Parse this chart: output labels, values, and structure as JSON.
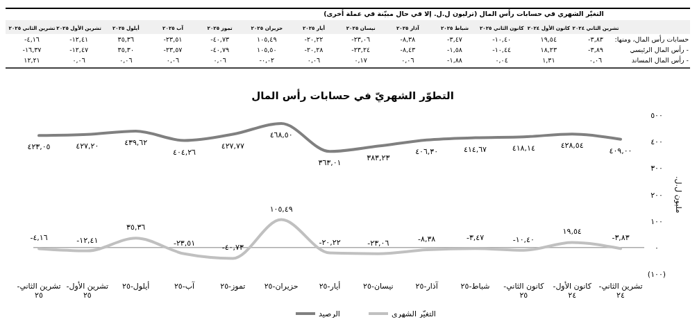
{
  "chart_data": [
    {
      "type": "other",
      "title": "التغيّر الشهري في حسابات رأس المال (ترليون ل.ل. إلا في حال مبيّنة في عملة أخرى)",
      "categories": [
        "تشرين الثاني ٢٠٢٥",
        "تشرين الأول ٢٠٢٥",
        "أيلول ٢٠٢٥",
        "آب ٢٠٢٥",
        "تموز ٢٠٢٥",
        "حزيران ٢٠٢٥",
        "أيار ٢٠٢٥",
        "نيسان ٢٠٢٥",
        "آذار ٢٠٢٥",
        "شباط ٢٠٢٥",
        "كانون الثاني ٢٠٢٥",
        "كانون الأول ٢٠٢٤",
        "تشرين الثاني ٢٠٢٤"
      ],
      "series": [
        {
          "name": "حسابات رأس المال، ومنها:",
          "values": [
            -4.16,
            -12.41,
            35.36,
            -23.51,
            -40.73,
            105.49,
            -20.22,
            -23.06,
            -8.38,
            -3.47,
            -10.4,
            19.54,
            -3.83
          ],
          "value_labels": [
            "-٤,١٦",
            "-١٢,٤١",
            "٣٥,٣٦",
            "-٢٣,٥١",
            "-٤٠,٧٣",
            "١٠٥,٤٩",
            "-٢٠,٢٢",
            "-٢٣,٠٦",
            "-٨,٣٨",
            "-٣,٤٧",
            "-١٠,٤٠",
            "١٩,٥٤",
            "-٣,٨٣"
          ]
        },
        {
          "name": "- رأس المال الرئيسي",
          "values": [
            -16.37,
            -12.47,
            35.3,
            -23.57,
            -40.79,
            105.5,
            -20.28,
            -23.24,
            -8.43,
            -1.58,
            -10.44,
            18.23,
            -3.89
          ],
          "value_labels": [
            "-١٦,٣٧",
            "-١٢,٤٧",
            "٣٥,٣٠",
            "-٢٣,٥٧",
            "-٤٠,٧٩",
            "١٠٥,٥٠",
            "-٢٠,٢٨",
            "-٢٣,٢٤",
            "-٨,٤٣",
            "-١,٥٨",
            "-١٠,٤٤",
            "١٨,٢٣",
            "-٣,٨٩"
          ]
        },
        {
          "name": "- رأس المال المساند",
          "values": [
            12.21,
            0.06,
            0.06,
            0.06,
            0.06,
            -0.02,
            0.06,
            0.17,
            0.06,
            -1.88,
            0.04,
            1.31,
            0.06
          ],
          "value_labels": [
            "١٢,٢١",
            "٠,٠٦",
            "٠,٠٦",
            "٠,٠٦",
            "٠,٠٦",
            "-٠,٠٢",
            "٠,٠٦",
            "٠,١٧",
            "٠,٠٦",
            "-١,٨٨",
            "٠,٠٤",
            "١,٣١",
            "٠,٠٦"
          ]
        }
      ]
    },
    {
      "type": "line",
      "title": "التطوّر الشهريّ في حسابات رأس المال",
      "ylabel": "مليون ل.ل.",
      "categories": [
        "تشرين الثاني-٢٥",
        "تشرين الأول-٢٥",
        "أيلول-٢٥",
        "آب-٢٥",
        "تموز-٢٥",
        "حزيران-٢٥",
        "أيار-٢٥",
        "نيسان-٢٥",
        "آذار-٢٥",
        "شباط-٢٥",
        "كانون الثاني-٢٥",
        "كانون الأول-٢٤",
        "تشرين الثاني-٢٤"
      ],
      "series": [
        {
          "name": "الرصيد",
          "color": "#808080",
          "values": [
            423.05,
            427.2,
            439.62,
            404.26,
            427.77,
            468.5,
            363.01,
            383.23,
            406.3,
            414.67,
            418.14,
            428.54,
            409.0
          ],
          "value_labels": [
            "٤٢٣,٠٥",
            "٤٢٧,٢٠",
            "٤٣٩,٦٢",
            "٤٠٤,٢٦",
            "٤٢٧,٧٧",
            "٤٦٨,٥٠",
            "٣٦٣,٠١",
            "٣٨٣,٢٣",
            "٤٠٦,٣٠",
            "٤١٤,٦٧",
            "٤١٨,١٤",
            "٤٢٨,٥٤",
            "٤٠٩,٠٠"
          ]
        },
        {
          "name": "التغيّر الشهري",
          "color": "#c0c0c0",
          "values": [
            -4.16,
            -12.41,
            35.36,
            -23.51,
            -40.73,
            105.49,
            -20.22,
            -23.06,
            -8.38,
            -3.47,
            -10.4,
            19.54,
            -3.83
          ],
          "value_labels": [
            "-٤,١٦",
            "-١٢,٤١",
            "٣٥,٣٦",
            "-٢٣,٥١",
            "-٤٠,٧٣",
            "١٠٥,٤٩",
            "-٢٠,٢٢",
            "-٢٣,٠٦",
            "-٨,٣٨",
            "-٣,٤٧",
            "-١٠,٤٠",
            "١٩,٥٤",
            "-٣,٨٣"
          ]
        }
      ],
      "ylim": [
        -100,
        500
      ],
      "yticks": [
        {
          "value": -100,
          "label": "(١٠٠)"
        },
        {
          "value": 0,
          "label": "٠"
        },
        {
          "value": 100,
          "label": "١٠٠"
        },
        {
          "value": 200,
          "label": "٢٠٠"
        },
        {
          "value": 300,
          "label": "٣٠٠"
        },
        {
          "value": 400,
          "label": "٤٠٠"
        },
        {
          "value": 500,
          "label": "٥٠٠"
        }
      ],
      "legend": "bottom"
    }
  ]
}
